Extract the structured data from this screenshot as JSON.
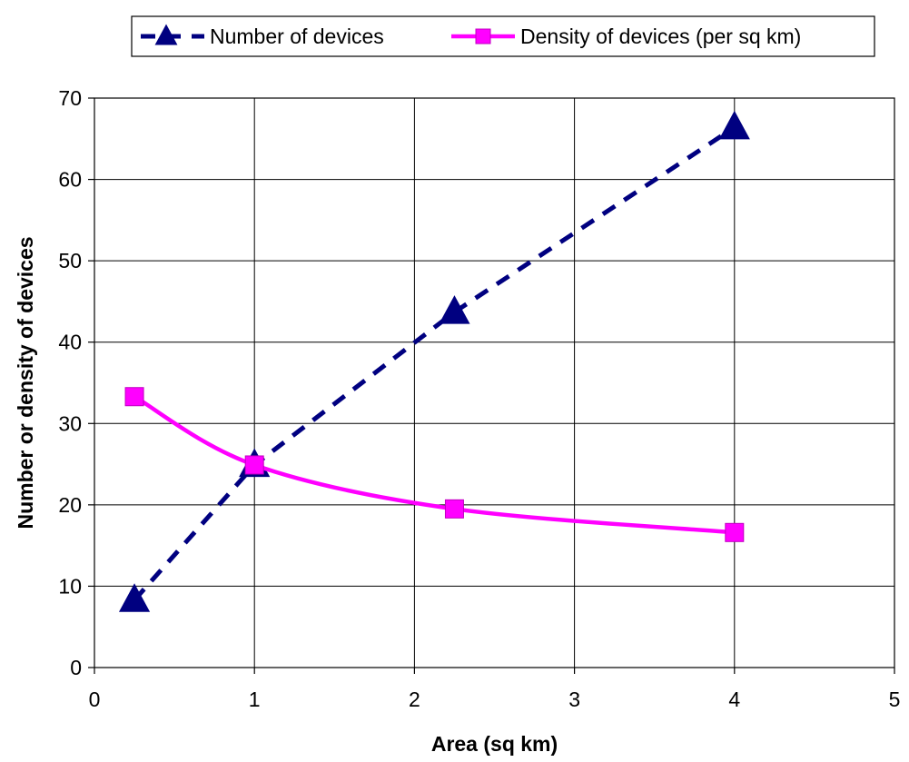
{
  "chart_data": {
    "type": "line",
    "title": "",
    "xlabel": "Area (sq km)",
    "ylabel": "Number or density of devices",
    "xlim": [
      0,
      5
    ],
    "ylim": [
      0,
      70
    ],
    "xticks": [
      "0",
      "1",
      "2",
      "3",
      "4",
      "5"
    ],
    "yticks": [
      "0",
      "10",
      "20",
      "30",
      "40",
      "50",
      "60",
      "70"
    ],
    "grid": true,
    "legend_position": "top",
    "series": [
      {
        "name": "Number of devices",
        "color": "#000080",
        "line_style": "dashed",
        "marker": "triangle",
        "x": [
          0.25,
          1,
          2.25,
          4
        ],
        "y": [
          8.3,
          24.9,
          43.7,
          66.4
        ]
      },
      {
        "name": "Density of devices (per sq km)",
        "color": "#ff00ff",
        "line_style": "solid",
        "marker": "square",
        "x": [
          0.25,
          1,
          2.25,
          4
        ],
        "y": [
          33.3,
          24.9,
          19.5,
          16.6
        ]
      }
    ]
  }
}
